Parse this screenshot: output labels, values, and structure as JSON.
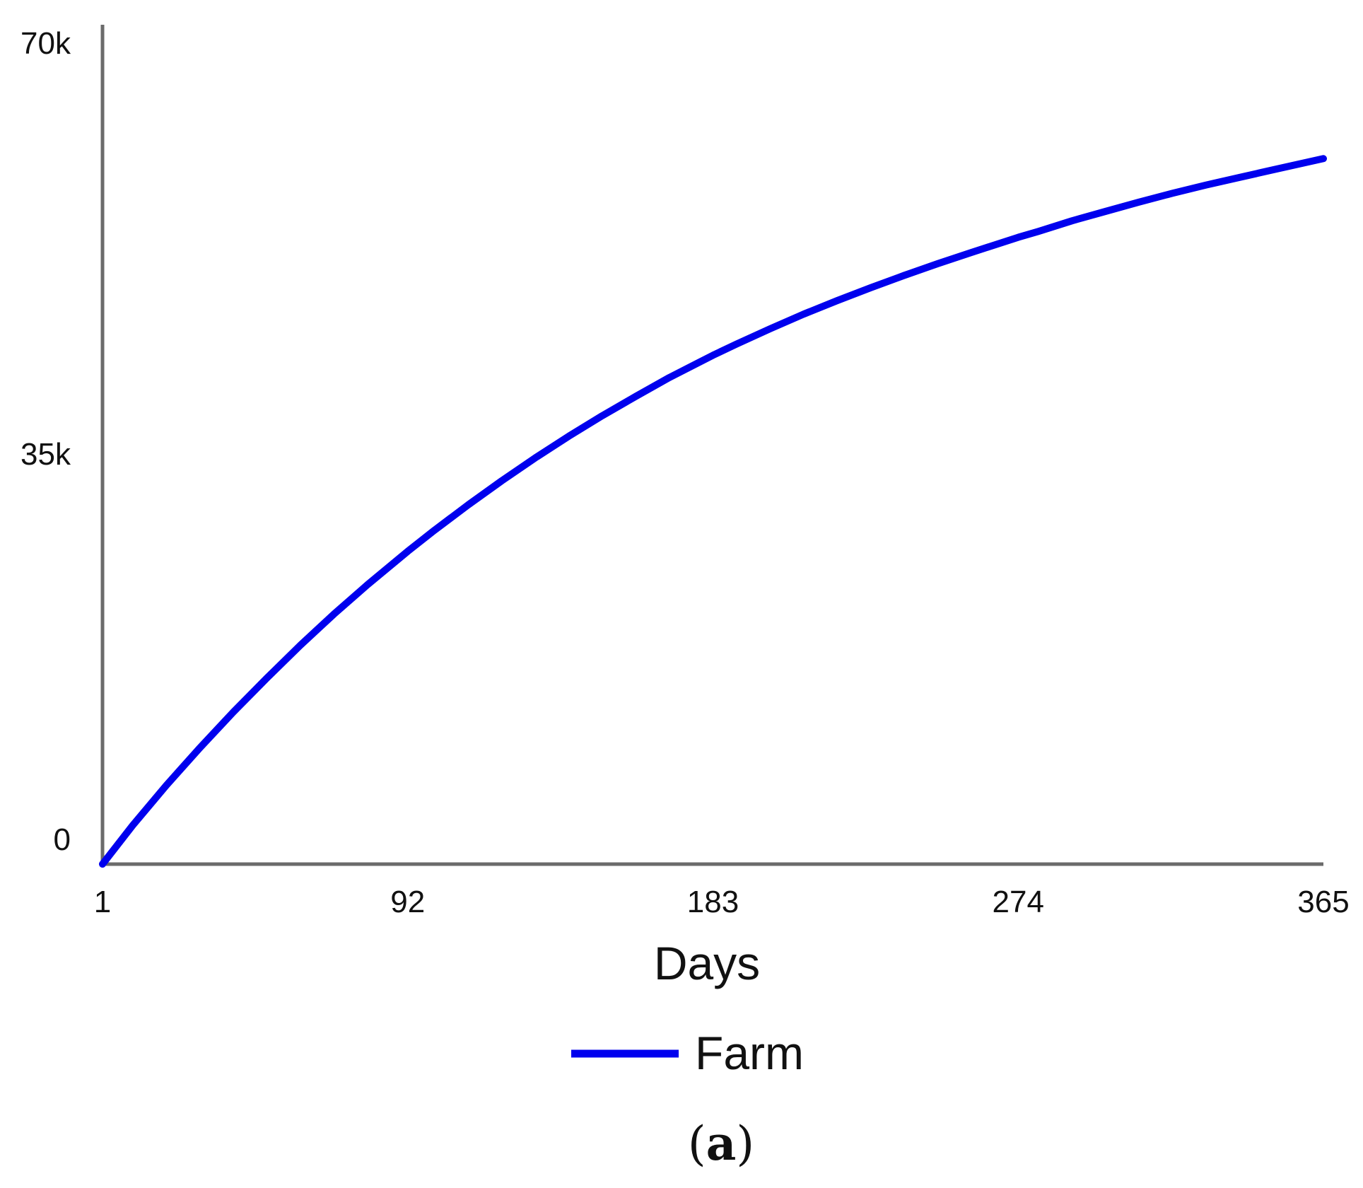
{
  "panel_label": {
    "open": "(",
    "letter": "a",
    "close": ")"
  },
  "chart_data": {
    "type": "line",
    "xlabel": "Days",
    "ylabel": "",
    "xlim": [
      1,
      365
    ],
    "ylim": [
      0,
      70000
    ],
    "x_ticks": [
      {
        "value": 1,
        "label": "1"
      },
      {
        "value": 92,
        "label": "92"
      },
      {
        "value": 183,
        "label": "183"
      },
      {
        "value": 274,
        "label": "274"
      },
      {
        "value": 365,
        "label": "365"
      }
    ],
    "y_ticks": [
      {
        "value": 0,
        "label": "0"
      },
      {
        "value": 35000,
        "label": "35k"
      },
      {
        "value": 70000,
        "label": "70k"
      }
    ],
    "grid": false,
    "legend_position": "bottom-center",
    "colors": {
      "axis": "#6b6b6b",
      "series": "#0000ee"
    },
    "series": [
      {
        "name": "Farm",
        "color": "#0000ee",
        "x": [
          1,
          10,
          20,
          30,
          40,
          50,
          60,
          70,
          80,
          92,
          100,
          110,
          120,
          130,
          140,
          150,
          160,
          170,
          183,
          190,
          200,
          210,
          220,
          230,
          240,
          250,
          260,
          274,
          280,
          290,
          300,
          310,
          320,
          330,
          340,
          350,
          365
        ],
        "y": [
          0,
          3300,
          6700,
          9900,
          12950,
          15850,
          18650,
          21300,
          23800,
          26650,
          28450,
          30600,
          32650,
          34600,
          36450,
          38200,
          39850,
          41450,
          43350,
          44300,
          45600,
          46850,
          48000,
          49100,
          50150,
          51150,
          52100,
          53400,
          53900,
          54800,
          55600,
          56400,
          57150,
          57850,
          58500,
          59150,
          60100
        ]
      }
    ]
  }
}
